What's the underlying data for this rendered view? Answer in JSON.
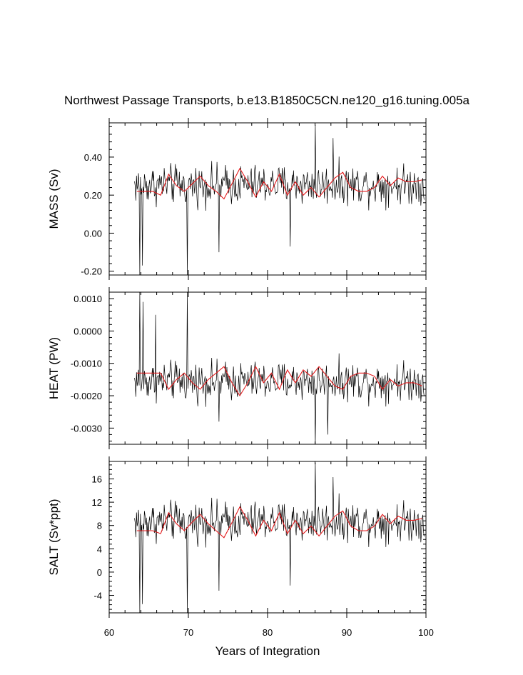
{
  "title": "Northwest Passage Transports, b.e13.B1850C5CN.ne120_g16.tuning.005a",
  "xlabel": "Years of Integration",
  "colors": {
    "monthly": "#000000",
    "annual": "#e41a1c",
    "frame": "#000000"
  },
  "chart_data": [
    {
      "type": "line",
      "name": "mass",
      "ylabel": "MASS (Sv)",
      "xlim": [
        60,
        100
      ],
      "ylim": [
        -0.22,
        0.58
      ],
      "yticks": [
        -0.2,
        0.0,
        0.2,
        0.4
      ],
      "yticklabels": [
        "-0.20",
        "0.00",
        "0.20",
        "0.40"
      ],
      "series": [
        {
          "name": "monthly",
          "start": 63.2,
          "step": 0.0833,
          "count": 440,
          "mean": 0.255,
          "amp": 0.095,
          "spikes": [
            [
              63.9,
              -0.22
            ],
            [
              64.2,
              -0.17
            ],
            [
              69.9,
              -0.22
            ],
            [
              73.9,
              -0.1
            ],
            [
              86.0,
              0.57
            ],
            [
              82.9,
              -0.07
            ],
            [
              88.3,
              0.5
            ]
          ]
        },
        {
          "name": "annual",
          "x": [
            63.5,
            64.5,
            65.5,
            66.5,
            67.5,
            68.5,
            69.5,
            70.5,
            71.5,
            72.5,
            73.5,
            74.5,
            75.5,
            76.5,
            77.5,
            78.5,
            79.5,
            80.5,
            81.5,
            82.5,
            83.5,
            84.5,
            85.5,
            86.5,
            87.5,
            88.5,
            89.5,
            90.5,
            91.5,
            92.5,
            93.5,
            94.5,
            95.5,
            96.5,
            97.5,
            98.5,
            99.5
          ],
          "values": [
            0.22,
            0.22,
            0.22,
            0.2,
            0.31,
            0.25,
            0.22,
            0.26,
            0.3,
            0.25,
            0.22,
            0.18,
            0.26,
            0.34,
            0.27,
            0.19,
            0.27,
            0.22,
            0.31,
            0.2,
            0.27,
            0.2,
            0.24,
            0.19,
            0.24,
            0.29,
            0.32,
            0.24,
            0.22,
            0.22,
            0.24,
            0.3,
            0.25,
            0.29,
            0.27,
            0.27,
            0.28
          ]
        }
      ]
    },
    {
      "type": "line",
      "name": "heat",
      "ylabel": "HEAT (PW)",
      "xlim": [
        60,
        100
      ],
      "ylim": [
        -0.0035,
        0.0012
      ],
      "yticks": [
        -0.003,
        -0.002,
        -0.001,
        0.0,
        0.001
      ],
      "yticklabels": [
        "-0.0030",
        "-0.0020",
        "-0.0010",
        "0.0000",
        "0.0010"
      ],
      "series": [
        {
          "name": "monthly",
          "start": 63.2,
          "step": 0.0833,
          "count": 440,
          "mean": -0.00155,
          "amp": 0.00055,
          "spikes": [
            [
              63.9,
              0.0012
            ],
            [
              64.3,
              0.0009
            ],
            [
              69.9,
              0.0012
            ],
            [
              65.9,
              0.0005
            ],
            [
              86.0,
              -0.0035
            ],
            [
              87.6,
              -0.0032
            ],
            [
              73.9,
              -0.0028
            ]
          ]
        },
        {
          "name": "annual",
          "x": [
            63.5,
            64.5,
            65.5,
            66.5,
            67.5,
            68.5,
            69.5,
            70.5,
            71.5,
            72.5,
            73.5,
            74.5,
            75.5,
            76.5,
            77.5,
            78.5,
            79.5,
            80.5,
            81.5,
            82.5,
            83.5,
            84.5,
            85.5,
            86.5,
            87.5,
            88.5,
            89.5,
            90.5,
            91.5,
            92.5,
            93.5,
            94.5,
            95.5,
            96.5,
            97.5,
            98.5,
            99.5
          ],
          "values": [
            -0.0013,
            -0.0013,
            -0.0013,
            -0.0013,
            -0.0018,
            -0.0015,
            -0.0013,
            -0.0016,
            -0.0018,
            -0.0015,
            -0.0013,
            -0.0011,
            -0.0016,
            -0.002,
            -0.0016,
            -0.0011,
            -0.0016,
            -0.0013,
            -0.0018,
            -0.0012,
            -0.0016,
            -0.0012,
            -0.0014,
            -0.0011,
            -0.0014,
            -0.0017,
            -0.0018,
            -0.0014,
            -0.0013,
            -0.0013,
            -0.0014,
            -0.0018,
            -0.0015,
            -0.0017,
            -0.0016,
            -0.0016,
            -0.0017
          ]
        }
      ]
    },
    {
      "type": "line",
      "name": "salt",
      "ylabel": "SALT (Sv*ppt)",
      "xlim": [
        60,
        100
      ],
      "ylim": [
        -7,
        19
      ],
      "yticks": [
        -4,
        0,
        4,
        8,
        12,
        16
      ],
      "yticklabels": [
        "-4",
        "0",
        "4",
        "8",
        "12",
        "16"
      ],
      "series": [
        {
          "name": "monthly",
          "start": 63.2,
          "step": 0.0833,
          "count": 440,
          "mean": 8.7,
          "amp": 3.1,
          "spikes": [
            [
              63.9,
              -7
            ],
            [
              64.2,
              -5.5
            ],
            [
              69.9,
              -7
            ],
            [
              73.9,
              -3.2
            ],
            [
              86.0,
              18.8
            ],
            [
              82.9,
              -2.3
            ],
            [
              88.3,
              16.3
            ]
          ]
        },
        {
          "name": "annual",
          "x": [
            63.5,
            64.5,
            65.5,
            66.5,
            67.5,
            68.5,
            69.5,
            70.5,
            71.5,
            72.5,
            73.5,
            74.5,
            75.5,
            76.5,
            77.5,
            78.5,
            79.5,
            80.5,
            81.5,
            82.5,
            83.5,
            84.5,
            85.5,
            86.5,
            87.5,
            88.5,
            89.5,
            90.5,
            91.5,
            92.5,
            93.5,
            94.5,
            95.5,
            96.5,
            97.5,
            98.5,
            99.5
          ],
          "values": [
            7.1,
            7.1,
            7.1,
            6.6,
            10.2,
            8.3,
            7.1,
            8.6,
            9.9,
            8.3,
            7.1,
            5.9,
            8.5,
            11.2,
            8.9,
            6.2,
            8.9,
            7.1,
            10.2,
            6.6,
            8.9,
            6.6,
            7.9,
            6.2,
            7.9,
            9.6,
            10.5,
            7.9,
            7.1,
            7.1,
            7.9,
            9.9,
            8.3,
            9.6,
            8.9,
            8.9,
            9.2
          ]
        }
      ]
    }
  ],
  "xticks": [
    60,
    70,
    80,
    90,
    100
  ],
  "xticklabels": [
    "60",
    "70",
    "80",
    "90",
    "100"
  ]
}
